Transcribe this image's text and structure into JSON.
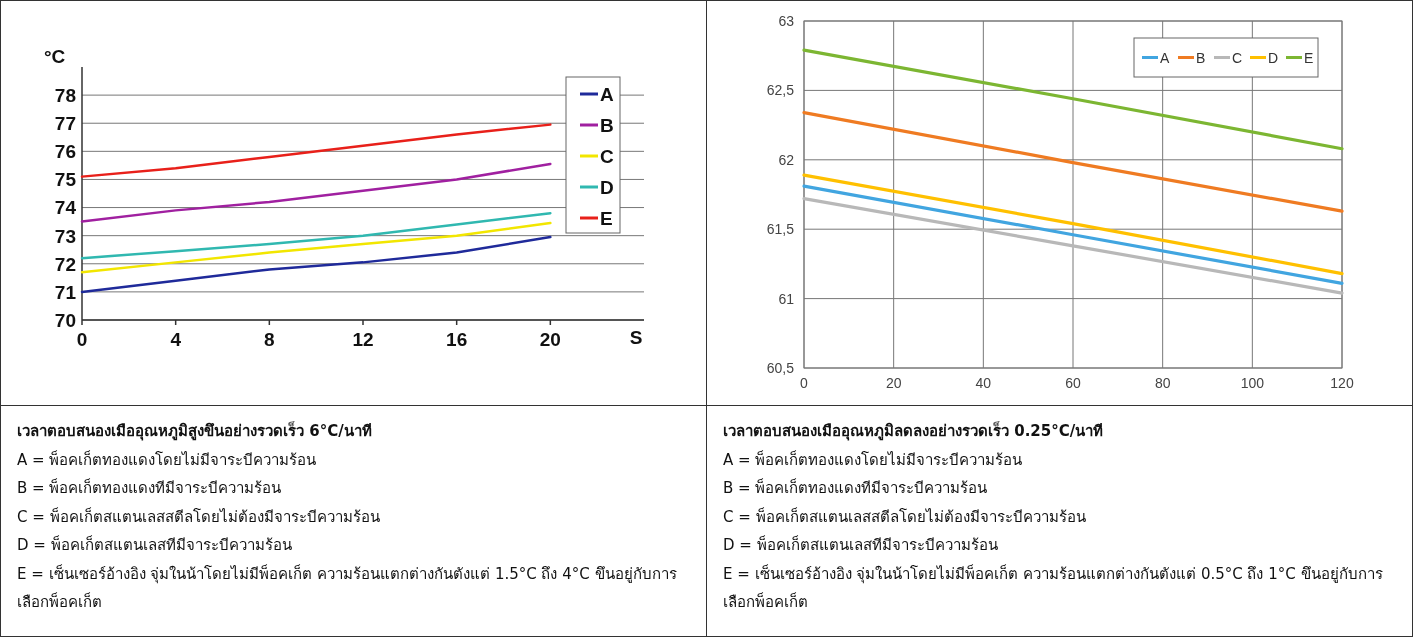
{
  "chart_data": [
    {
      "type": "line",
      "title": "เวลาตอบสนองเมืออุณหภูมิสูงขึนอย่างรวดเร็ว 6°C/นาที",
      "xlabel": "S",
      "ylabel": "°C",
      "x": [
        0,
        4,
        8,
        12,
        16,
        20
      ],
      "series": [
        {
          "name": "A",
          "color": "#1f2a9a",
          "values": [
            71.0,
            71.4,
            71.8,
            72.05,
            72.4,
            72.95
          ]
        },
        {
          "name": "B",
          "color": "#a020a0",
          "values": [
            73.5,
            73.9,
            74.2,
            74.6,
            75.0,
            75.55
          ]
        },
        {
          "name": "C",
          "color": "#f2e600",
          "values": [
            71.7,
            72.05,
            72.4,
            72.7,
            73.0,
            73.45
          ]
        },
        {
          "name": "D",
          "color": "#30b8b0",
          "values": [
            72.2,
            72.45,
            72.7,
            73.0,
            73.4,
            73.8
          ]
        },
        {
          "name": "E",
          "color": "#e8201a",
          "values": [
            75.1,
            75.4,
            75.8,
            76.2,
            76.6,
            76.95
          ]
        }
      ],
      "xlim": [
        0,
        24
      ],
      "ylim": [
        70,
        79
      ],
      "xticks": [
        0,
        4,
        8,
        12,
        16,
        20
      ],
      "yticks": [
        70,
        71,
        72,
        73,
        74,
        75,
        76,
        77,
        78
      ],
      "grid": "y",
      "legend": "top right",
      "annotations": [
        "A = พ็อคเก็ตทองแดงโดยไม่มีจาระบีความร้อน",
        "B = พ็อคเก็ตทองแดงทีมีจาระบีความร้อน",
        "C = พ็อคเก็ตสแตนเลสสตีลโดยไม่ต้องมีจาระบีความร้อน",
        "D = พ็อคเก็ตสแตนเลสทีมีจาระบีความร้อน",
        "E = เซ็นเซอร์อ้างอิง จุ่มในน้าโดยไม่มีพ็อคเก็ต ความร้อนแตกต่างกันตังแต่ 1.5°C ถึง 4°C ขึนอยู่กับการเลือกพ็อคเก็ต"
      ]
    },
    {
      "type": "line",
      "title": "เวลาตอบสนองเมืออุณหภูมิลดลงอย่างรวดเร็ว 0.25°C/นาที",
      "x": [
        0,
        60,
        120
      ],
      "series": [
        {
          "name": "A",
          "color": "#41a5e0",
          "values": [
            61.81,
            61.46,
            61.11
          ]
        },
        {
          "name": "B",
          "color": "#ef7b22",
          "values": [
            62.34,
            61.98,
            61.63
          ]
        },
        {
          "name": "C",
          "color": "#b8b8b8",
          "values": [
            61.72,
            61.38,
            61.04
          ]
        },
        {
          "name": "D",
          "color": "#ffc000",
          "values": [
            61.89,
            61.54,
            61.18
          ]
        },
        {
          "name": "E",
          "color": "#7cb632",
          "values": [
            62.79,
            62.44,
            62.08
          ]
        }
      ],
      "xlim": [
        0,
        120
      ],
      "ylim": [
        60.5,
        63
      ],
      "xticks": [
        0,
        20,
        40,
        60,
        80,
        100,
        120
      ],
      "yticks": [
        {
          "value": 60.5,
          "label": "60,5"
        },
        {
          "value": 61,
          "label": "61"
        },
        {
          "value": 61.5,
          "label": "61,5"
        },
        {
          "value": 62,
          "label": "62"
        },
        {
          "value": 62.5,
          "label": "62,5"
        },
        {
          "value": 63,
          "label": "63"
        }
      ],
      "grid": true,
      "legend": "top right",
      "annotations": [
        "A = พ็อคเก็ตทองแดงโดยไม่มีจาระบีความร้อน",
        "B = พ็อคเก็ตทองแดงทีมีจาระบีความร้อน",
        "C = พ็อคเก็ตสแตนเลสสตีลโดยไม่ต้องมีจาระบีความร้อน",
        "D = พ็อคเก็ตสแตนเลสทีมีจาระบีความร้อน",
        "E = เซ็นเซอร์อ้างอิง จุ่มในน้าโดยไม่มีพ็อคเก็ต ความร้อนแตกต่างกันตังแต่ 0.5°C ถึง 1°C ขึนอยู่กับการเลือกพ็อคเก็ต"
      ]
    }
  ]
}
